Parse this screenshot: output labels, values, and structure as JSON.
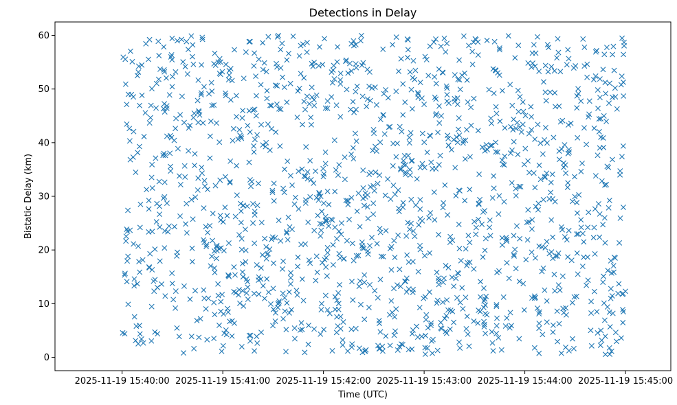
{
  "chart_data": {
    "type": "scatter",
    "title": "Detections in Delay",
    "xlabel": "Time (UTC)",
    "ylabel": "Bistatic Delay (km)",
    "marker": "x",
    "color": "#1f77b4",
    "grid": false,
    "x_range_seconds": [
      -40,
      327
    ],
    "ylim": [
      -2.5,
      62.5
    ],
    "x_ticks": [
      {
        "seconds": 0,
        "label": "2025-11-19 15:40:00"
      },
      {
        "seconds": 60,
        "label": "2025-11-19 15:41:00"
      },
      {
        "seconds": 120,
        "label": "2025-11-19 15:42:00"
      },
      {
        "seconds": 180,
        "label": "2025-11-19 15:43:00"
      },
      {
        "seconds": 240,
        "label": "2025-11-19 15:44:00"
      },
      {
        "seconds": 300,
        "label": "2025-11-19 15:45:00"
      }
    ],
    "y_ticks": [
      0,
      10,
      20,
      30,
      40,
      50,
      60
    ],
    "x_time_window": [
      "2025-11-19 15:40:00",
      "2025-11-19 15:45:00"
    ],
    "point_count": 1500,
    "delay_range_km": [
      0.5,
      60
    ],
    "points_note": "uniformly scattered detections; generated deterministically"
  }
}
